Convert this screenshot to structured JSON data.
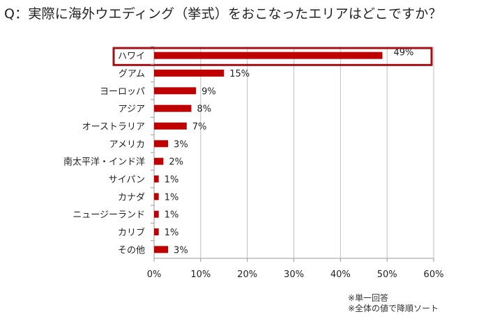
{
  "title": "Q：実際に海外ウエディング（挙式）をおこなったエリアはどこですか？",
  "notes": [
    "※単一回答",
    "※全体の値で降順ソート"
  ],
  "colors": {
    "bar": "#c00000",
    "highlight_border": "#a50f15",
    "grid": "#bfbfbf"
  },
  "chart_data": {
    "type": "bar",
    "orientation": "horizontal",
    "categories": [
      "ハワイ",
      "グアム",
      "ヨーロッパ",
      "アジア",
      "オーストラリア",
      "アメリカ",
      "南太平洋・インド洋",
      "サイパン",
      "カナダ",
      "ニュージーランド",
      "カリブ",
      "その他"
    ],
    "values": [
      49,
      15,
      9,
      8,
      7,
      3,
      2,
      1,
      1,
      1,
      1,
      3
    ],
    "data_labels": [
      "49%",
      "15%",
      "9%",
      "8%",
      "7%",
      "3%",
      "2%",
      "1%",
      "1%",
      "1%",
      "1%",
      "3%"
    ],
    "xlim": [
      0,
      60
    ],
    "xticks": [
      "0%",
      "10%",
      "20%",
      "30%",
      "40%",
      "50%",
      "60%"
    ],
    "xtick_values": [
      0,
      10,
      20,
      30,
      40,
      50,
      60
    ],
    "grid": "vertical",
    "highlighted_category": "ハワイ",
    "legend": "none"
  }
}
